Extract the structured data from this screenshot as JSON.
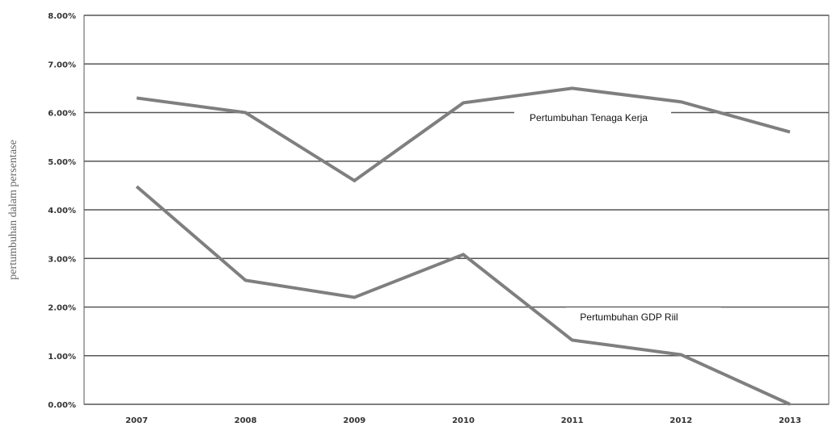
{
  "chart_data": {
    "type": "line",
    "title": "",
    "xlabel": "",
    "ylabel": "pertumbuhan dalam persentase",
    "categories": [
      "2007",
      "2008",
      "2009",
      "2010",
      "2011",
      "2012",
      "2013"
    ],
    "ylim": [
      0,
      8
    ],
    "yticks": [
      "0.00%",
      "1.00%",
      "2.00%",
      "3.00%",
      "4.00%",
      "5.00%",
      "6.00%",
      "7.00%",
      "8.00%"
    ],
    "grid": true,
    "line_color": "#7f7f7f",
    "grid_color": "#555555",
    "series": [
      {
        "name": "Pertumbuhan Tenaga Kerja",
        "values": [
          6.3,
          6.0,
          4.6,
          6.2,
          6.5,
          6.22,
          5.6
        ]
      },
      {
        "name": "Pertumbuhan GDP Riil",
        "values": [
          4.48,
          2.55,
          2.2,
          3.08,
          1.32,
          1.02,
          0.0
        ]
      }
    ]
  }
}
